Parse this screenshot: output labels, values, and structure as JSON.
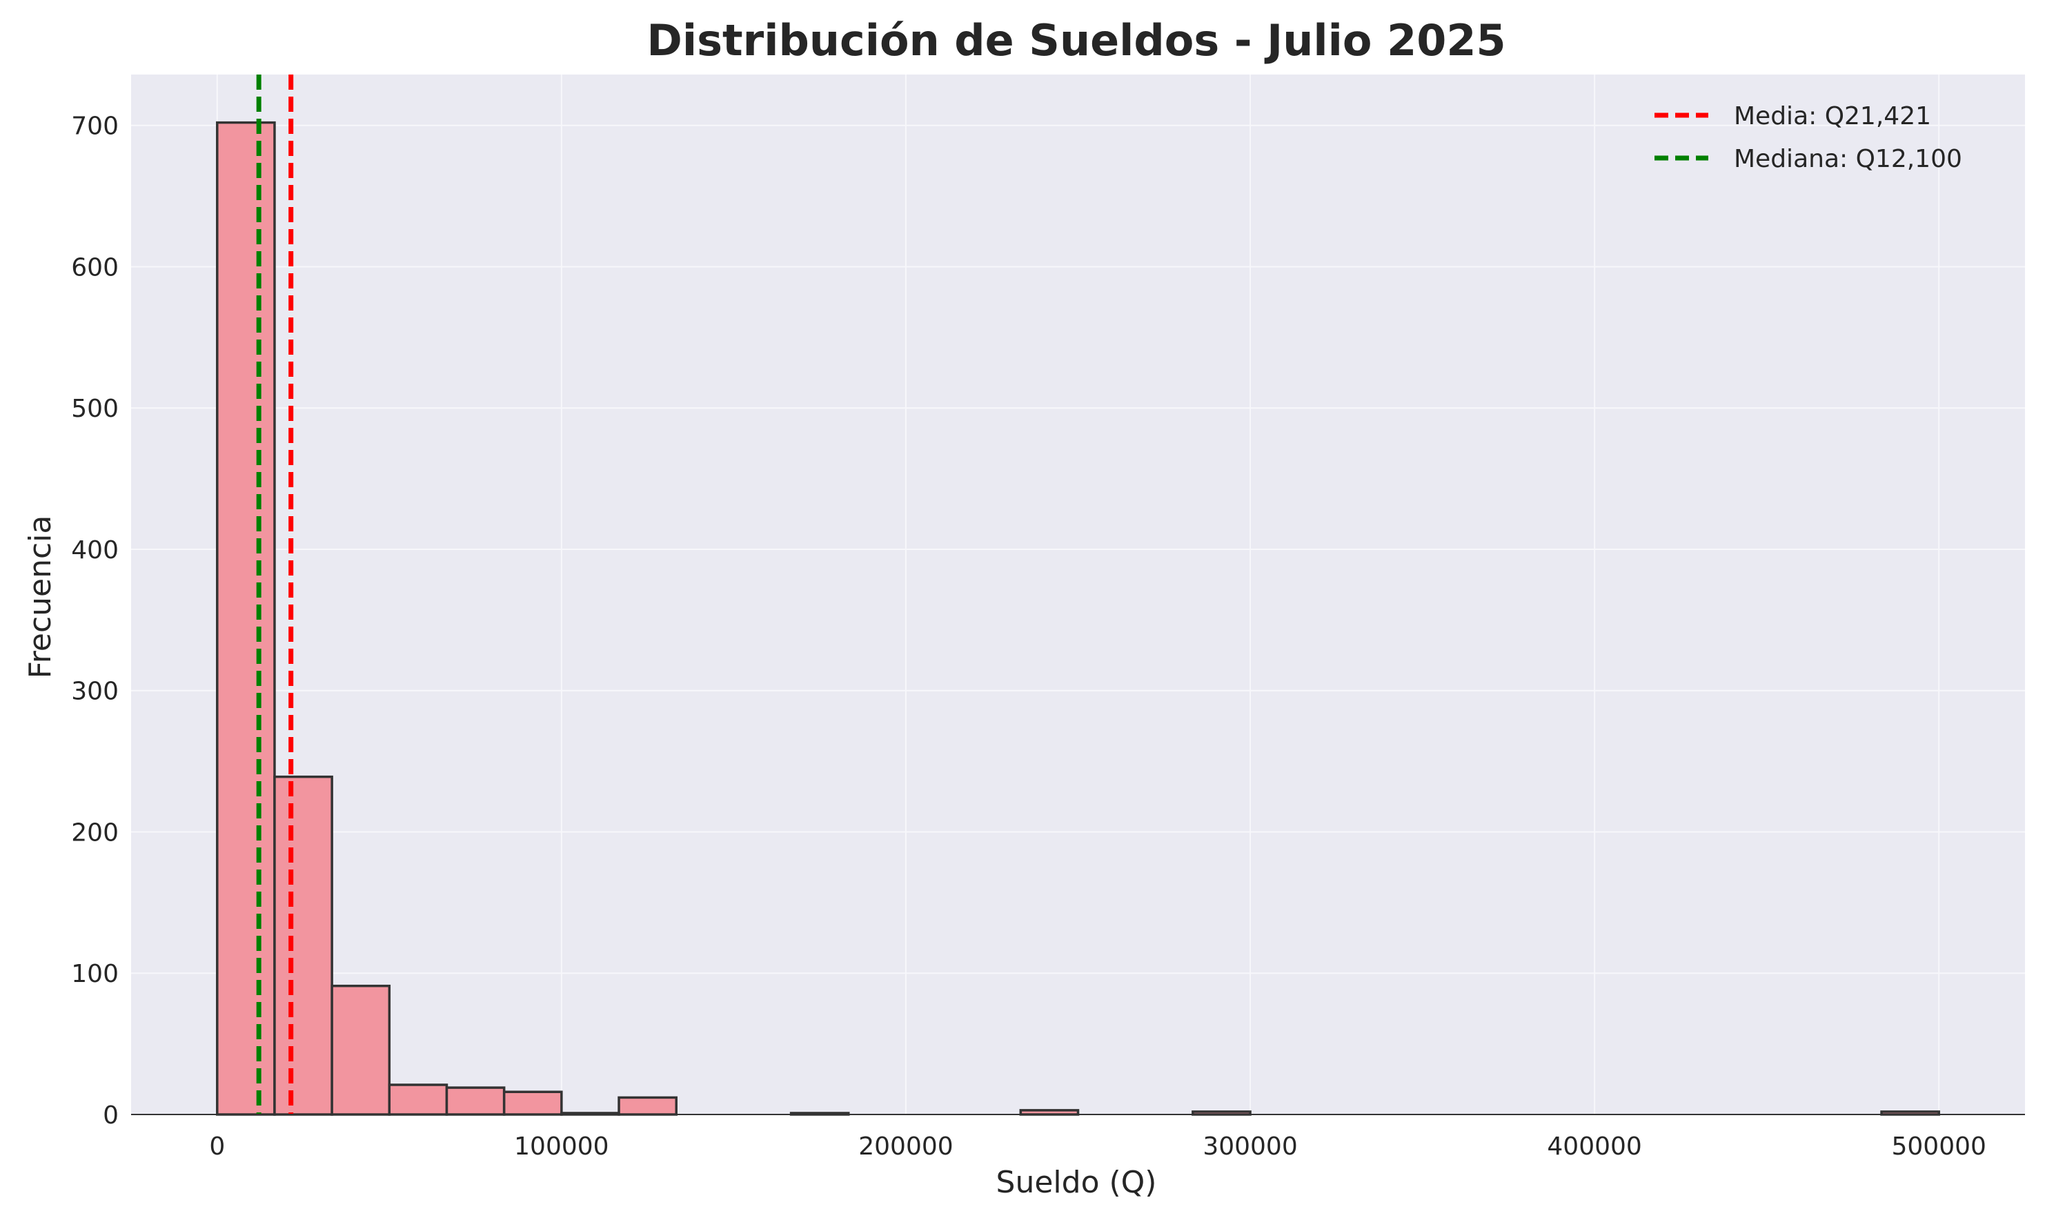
{
  "chart_data": {
    "type": "bar",
    "title": "Distribución de Sueldos - Julio 2025",
    "xlabel": "Sueldo (Q)",
    "ylabel": "Frecuencia",
    "xlim": [
      -25000,
      525000
    ],
    "ylim": [
      0,
      736
    ],
    "x_ticks": [
      0,
      100000,
      200000,
      300000,
      400000,
      500000
    ],
    "x_tick_labels": [
      "0",
      "100000",
      "200000",
      "300000",
      "400000",
      "500000"
    ],
    "y_ticks": [
      0,
      100,
      200,
      300,
      400,
      500,
      600,
      700
    ],
    "y_tick_labels": [
      "0",
      "100",
      "200",
      "300",
      "400",
      "500",
      "600",
      "700"
    ],
    "grid": true,
    "legend_position": "top-right",
    "bin_width": 16667,
    "bins": [
      {
        "x0": 0,
        "count": 702
      },
      {
        "x0": 16667,
        "count": 239
      },
      {
        "x0": 33333,
        "count": 91
      },
      {
        "x0": 50000,
        "count": 21
      },
      {
        "x0": 66667,
        "count": 19
      },
      {
        "x0": 83333,
        "count": 16
      },
      {
        "x0": 100000,
        "count": 1
      },
      {
        "x0": 116667,
        "count": 12
      },
      {
        "x0": 166667,
        "count": 1
      },
      {
        "x0": 233333,
        "count": 3
      },
      {
        "x0": 283333,
        "count": 2
      },
      {
        "x0": 483333,
        "count": 2
      }
    ],
    "reference_lines": [
      {
        "label": "Media: Q21,421",
        "value": 21421,
        "color": "#ff0000"
      },
      {
        "label": "Mediana: Q12,100",
        "value": 12100,
        "color": "#008000"
      }
    ],
    "colors": {
      "bar_fill": "#f2959f",
      "bar_edge": "#333333",
      "plot_background": "#eaeaf2",
      "grid": "#f7f7fb"
    }
  }
}
